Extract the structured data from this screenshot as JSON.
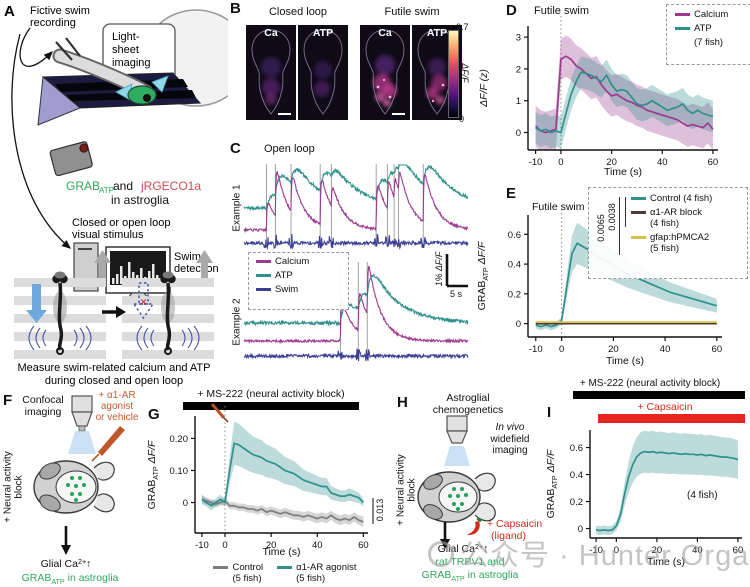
{
  "watermark": {
    "text": "公众号 · Hunter Organs"
  },
  "colors": {
    "calcium": "#9c3a8f",
    "atp": "#2f908c",
    "swim": "#3a3f96",
    "control_gray": "#7d7d7d",
    "a1_block": "#503a38",
    "gfap_yellow": "#d6c14f",
    "capsaicin_red": "#d42a1e",
    "agonist_orange": "#c65b33",
    "grab_green": "#2eaa5e"
  },
  "panel_a": {
    "label": "A",
    "fictive1": "Fictive swim",
    "fictive2": "recording",
    "lightsheet1": "Light-",
    "lightsheet2": "sheet",
    "lightsheet3": "imaging",
    "grab_main": "GRAB",
    "grab_sub": "ATP",
    "and_text": " and ",
    "jrgeco": "jRGECO1a",
    "astroglia": "in astroglia",
    "loop1": "Closed or open loop",
    "loop2": "visual stimulus",
    "swim1": "Swim",
    "swim2": "detection",
    "cross": "✕",
    "caption1": "Measure swim-related calcium and ATP",
    "caption2": "during closed and open loop"
  },
  "panel_b": {
    "label": "B",
    "col1": "Closed loop",
    "col2": "Futile swim",
    "img_labels": [
      "Ca",
      "ATP",
      "Ca",
      "ATP"
    ],
    "cbar_max": "0.7",
    "cbar_min": "0",
    "cbar_label": "ΔF/F"
  },
  "panel_c": {
    "label": "C",
    "title": "Open loop",
    "ex1": "Example 1",
    "ex2": "Example 2",
    "legend": {
      "calcium": "Calcium",
      "atp": "ATP",
      "swim": "Swim"
    },
    "scale_y": "1% ΔF/F",
    "scale_x": "5 s"
  },
  "panel_d": {
    "label": "D",
    "annotation": "Futile swim",
    "legend": {
      "calcium": "Calcium",
      "atp": "ATP",
      "n": "(7 fish)"
    },
    "ylabel": "ΔF/F (z)",
    "xlabel": "Time (s)"
  },
  "panel_e": {
    "label": "E",
    "annotation": "Futile swim",
    "p1": "0.0065",
    "p2": "0.0038",
    "legend": {
      "row1": "Control (4 fish)",
      "row2a": "α1-AR block",
      "row2b": "(4 fish)",
      "row3a": "gfap:hPMCA2",
      "row3b": "(5 fish)"
    },
    "ylabel_main": "GRAB",
    "ylabel_sub": "ATP",
    "ylabel_rest": " ΔF/F",
    "xlabel": "Time (s)"
  },
  "panel_f": {
    "label": "F",
    "imaging1": "Confocal",
    "imaging2": "imaging",
    "agonist1": "+ α1-AR",
    "agonist2": "agonist",
    "agonist3": "or vehicle",
    "block1": "+ Neural activity",
    "block2": "block",
    "glial_pre": "Glial Ca",
    "glial_sup": "2+",
    "glial_post": "↑",
    "grab_main": "GRAB",
    "grab_sub": "ATP",
    "grab_rest": " in astroglia"
  },
  "panel_g": {
    "label": "G",
    "bar": "+ MS-222 (neural activity block)",
    "p": "0.013",
    "xlabel": "Time (s)",
    "ylabel_main": "GRAB",
    "ylabel_sub": "ATP",
    "ylabel_rest": " ΔF/F",
    "legend": {
      "control1": "Control",
      "control2": "(5 fish)",
      "agonist1": "α1-AR agonist",
      "agonist2": "(5 fish)"
    }
  },
  "panel_h": {
    "label": "H",
    "title1": "Astroglial",
    "title2": "chemogenetics",
    "imaging1": "In vivo",
    "imaging2": "widefield",
    "imaging3": "imaging",
    "block1": "+ Neural activity",
    "block2": "block",
    "capsaicin1": "+ Capsaicin",
    "capsaicin2": "(ligand)",
    "glial_pre": "Glial Ca",
    "glial_sup": "2+",
    "glial_post": "↑",
    "trpv": "rat TRPV1 and",
    "grab_main": "GRAB",
    "grab_sub": "ATP",
    "grab_rest": " in astroglia"
  },
  "panel_i": {
    "label": "I",
    "bar": "+ MS-222 (neural activity block)",
    "capsaicin": "+ Capsaicin",
    "n": "(4 fish)",
    "xlabel": "Time (s)",
    "ylabel_main": "GRAB",
    "ylabel_sub": "ATP",
    "ylabel_rest": " ΔF/F"
  },
  "chart_data": [
    {
      "id": "D",
      "type": "line",
      "title": "Futile swim",
      "xlabel": "Time (s)",
      "ylabel": "ΔF/F (z)",
      "x_start": -10,
      "x_step": 2,
      "xticks": [
        -10,
        0,
        20,
        40,
        60
      ],
      "yticks": [
        0,
        1,
        2,
        3
      ],
      "xlim": [
        -13,
        62
      ],
      "ylim": [
        -0.55,
        3.35
      ],
      "vline": 0,
      "legend": [
        "Calcium",
        "ATP",
        "(7 fish)"
      ],
      "series": [
        {
          "name": "Calcium",
          "color": "#9c3a8f",
          "band_abs": 0.65,
          "band_rel": 0,
          "values": [
            0.2,
            0.05,
            0,
            0.05,
            0.1,
            2.3,
            2.4,
            2.3,
            2.1,
            2.0,
            1.85,
            1.7,
            1.75,
            1.5,
            1.3,
            1.15,
            1.2,
            1.1,
            1.0,
            0.95,
            0.85,
            0.8,
            0.7,
            0.65,
            0.6,
            0.55,
            0.5,
            0.45,
            0.4,
            0.3,
            0.2,
            0.25,
            0.2,
            0.15,
            0.3,
            0.1
          ]
        },
        {
          "name": "ATP",
          "color": "#2f908c",
          "band_abs": 0.5,
          "band_rel": 0,
          "values": [
            0.15,
            0.05,
            0.1,
            0,
            0.05,
            0,
            0.6,
            1.2,
            1.6,
            1.9,
            1.85,
            1.8,
            1.7,
            1.6,
            1.8,
            1.5,
            1.3,
            1.35,
            1.3,
            1.1,
            0.9,
            0.85,
            0.9,
            1.0,
            0.9,
            0.8,
            0.7,
            0.75,
            0.8,
            0.9,
            0.7,
            0.6,
            0.7,
            0.6,
            0.55,
            0.5
          ]
        }
      ]
    },
    {
      "id": "E",
      "type": "line",
      "title": "Futile swim",
      "xlabel": "Time (s)",
      "ylabel": "GRAB_ATP ΔF/F",
      "x_start": -10,
      "x_step": 2,
      "xticks": [
        -10,
        0,
        20,
        40,
        60
      ],
      "yticks": [
        0,
        0.2,
        0.4,
        0.6
      ],
      "ytick_labels": [
        "0",
        "0.2",
        "0.4",
        "0.6"
      ],
      "xlim": [
        -13,
        62
      ],
      "ylim": [
        -0.09,
        0.73
      ],
      "vline": 0,
      "p_values": [
        "0.0065",
        "0.0038"
      ],
      "series": [
        {
          "name": "Control (4 fish)",
          "color": "#2f908c",
          "band_abs": 0.02,
          "band_rel": 0.22,
          "values": [
            -0.01,
            -0.02,
            -0.01,
            -0.02,
            -0.01,
            0.02,
            0.25,
            0.47,
            0.54,
            0.52,
            0.5,
            0.47,
            0.45,
            0.43,
            0.41,
            0.39,
            0.37,
            0.35,
            0.33,
            0.315,
            0.3,
            0.285,
            0.27,
            0.255,
            0.24,
            0.225,
            0.21,
            0.2,
            0.19,
            0.18,
            0.17,
            0.16,
            0.15,
            0.14,
            0.13,
            0.12
          ]
        },
        {
          "name": "α1-AR block (4 fish)",
          "color": "#503a38",
          "values": [
            0,
            0,
            0,
            0,
            0,
            0,
            0,
            0,
            0,
            0,
            0,
            0,
            0,
            0,
            0,
            0,
            0,
            0,
            0,
            0,
            0,
            0,
            0,
            0,
            0,
            0,
            0,
            0,
            0,
            0,
            0,
            0,
            0,
            0,
            0,
            0
          ]
        },
        {
          "name": "gfap:hPMCA2 (5 fish)",
          "color": "#d6c14f",
          "values": [
            0.01,
            0.01,
            0.01,
            0.01,
            0.01,
            0.01,
            0.01,
            0.01,
            0.01,
            0.01,
            0.01,
            0.01,
            0.01,
            0.01,
            0.01,
            0.01,
            0.01,
            0.01,
            0.01,
            0.01,
            0.01,
            0.01,
            0.01,
            0.01,
            0.01,
            0.01,
            0.01,
            0.01,
            0.01,
            0.01,
            0.01,
            0.01,
            0.01,
            0.01,
            0.01,
            0.01
          ]
        }
      ]
    },
    {
      "id": "G",
      "type": "line",
      "title": "+ MS-222 (neural activity block)",
      "xlabel": "Time (s)",
      "ylabel": "GRAB_ATP ΔF/F",
      "x_start": -10,
      "x_step": 2,
      "xticks": [
        -10,
        0,
        20,
        40,
        60
      ],
      "yticks": [
        0,
        0.1,
        0.2
      ],
      "ytick_labels": [
        "0",
        "0.10",
        "0.20"
      ],
      "xlim": [
        -13,
        62
      ],
      "ylim": [
        -0.095,
        0.27
      ],
      "vline": 0,
      "p_values": [
        "0.013"
      ],
      "series": [
        {
          "name": "Control (5 fish)",
          "color": "#7d7d7d",
          "band_abs": 0.01,
          "band_rel": 0.1,
          "values": [
            0.01,
            0.005,
            0,
            -0.005,
            0,
            0.005,
            -0.01,
            -0.01,
            -0.015,
            -0.015,
            -0.02,
            -0.02,
            -0.025,
            -0.02,
            -0.03,
            -0.025,
            -0.03,
            -0.035,
            -0.03,
            -0.035,
            -0.04,
            -0.04,
            -0.045,
            -0.04,
            -0.045,
            -0.05,
            -0.045,
            -0.05,
            -0.04,
            -0.05,
            -0.055,
            -0.05,
            -0.055,
            -0.045,
            -0.055,
            -0.06
          ]
        },
        {
          "name": "α1-AR agonist (5 fish)",
          "color": "#2f908c",
          "band_abs": 0.012,
          "band_rel": 0.3,
          "values": [
            0.01,
            0,
            -0.01,
            0,
            0.01,
            0,
            0.1,
            0.185,
            0.18,
            0.17,
            0.16,
            0.15,
            0.145,
            0.14,
            0.13,
            0.125,
            0.12,
            0.11,
            0.1,
            0.095,
            0.09,
            0.08,
            0.07,
            0.065,
            0.06,
            0.055,
            0.05,
            0.05,
            0.03,
            0.025,
            0.02,
            0.02,
            0.025,
            0.02,
            0.015,
            0
          ]
        }
      ]
    },
    {
      "id": "I",
      "type": "line",
      "title": "+ MS-222 (neural activity block) / + Capsaicin",
      "xlabel": "Time (s)",
      "ylabel": "GRAB_ATP ΔF/F",
      "annotation": "(4 fish)",
      "x_start": -10,
      "x_step": 2,
      "xticks": [
        -10,
        0,
        20,
        40,
        60
      ],
      "yticks": [
        0,
        0.2,
        0.4,
        0.6
      ],
      "ytick_labels": [
        "0",
        "0.2",
        "0.4",
        "0.6"
      ],
      "xlim": [
        -13,
        62
      ],
      "ylim": [
        -0.07,
        0.73
      ],
      "series": [
        {
          "name": "Capsaicin (4 fish)",
          "color": "#2f908c",
          "band_abs": 0.03,
          "band_rel": 0.22,
          "values": [
            -0.01,
            -0.015,
            -0.01,
            -0.015,
            -0.01,
            0.02,
            0.1,
            0.25,
            0.38,
            0.47,
            0.53,
            0.56,
            0.57,
            0.565,
            0.57,
            0.56,
            0.565,
            0.56,
            0.555,
            0.56,
            0.555,
            0.55,
            0.555,
            0.55,
            0.55,
            0.545,
            0.55,
            0.54,
            0.545,
            0.54,
            0.535,
            0.53,
            0.53,
            0.525,
            0.52,
            0.51
          ]
        }
      ]
    },
    {
      "id": "C",
      "type": "line",
      "title": "Open loop",
      "series_names": [
        "Calcium",
        "ATP",
        "Swim"
      ],
      "scalebar": {
        "y": "1% ΔF/F",
        "x": "5 s"
      },
      "examples": [
        {
          "name": "Example 1",
          "swim_event_times_frac": [
            0.1,
            0.14,
            0.21,
            0.34,
            0.39,
            0.59,
            0.64,
            0.67,
            0.69,
            0.8
          ]
        },
        {
          "name": "Example 2",
          "swim_event_times_frac": [
            0.43,
            0.51,
            0.55
          ]
        }
      ]
    }
  ]
}
